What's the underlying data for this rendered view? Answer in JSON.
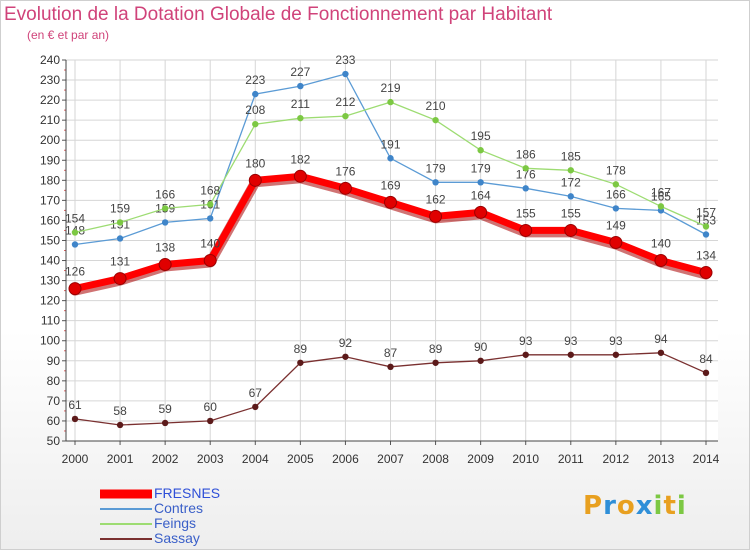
{
  "title": "Evolution de la Dotation Globale de Fonctionnement par Habitant",
  "subtitle": "(en € et par an)",
  "logo": {
    "text": "Proxiti",
    "letters": [
      "P",
      "r",
      "o",
      "x",
      "i",
      "t",
      "i"
    ]
  },
  "chart_data": {
    "type": "line",
    "title": "Evolution de la Dotation Globale de Fonctionnement par Habitant",
    "subtitle": "(en € et par an)",
    "xlabel": "",
    "ylabel": "",
    "x": [
      "2000",
      "2001",
      "2002",
      "2003",
      "2004",
      "2005",
      "2006",
      "2007",
      "2008",
      "2009",
      "2010",
      "2011",
      "2012",
      "2013",
      "2014"
    ],
    "ylim": [
      50,
      240
    ],
    "yticks": [
      50,
      60,
      70,
      80,
      90,
      100,
      110,
      120,
      130,
      140,
      150,
      160,
      170,
      180,
      190,
      200,
      210,
      220,
      230,
      240
    ],
    "grid": true,
    "legend": "bottom-left",
    "series": [
      {
        "name": "FRESNES",
        "color": "#ff0000",
        "marker": "#cc0000",
        "values": [
          126,
          131,
          138,
          140,
          180,
          182,
          176,
          169,
          162,
          164,
          155,
          155,
          149,
          140,
          134
        ]
      },
      {
        "name": "Contres",
        "color": "#5b9bd5",
        "marker": "#3f85c9",
        "values": [
          148,
          151,
          159,
          161,
          223,
          227,
          233,
          191,
          179,
          179,
          176,
          172,
          166,
          165,
          153
        ]
      },
      {
        "name": "Feings",
        "color": "#9ddc72",
        "marker": "#7cc843",
        "values": [
          154,
          159,
          166,
          168,
          208,
          211,
          212,
          219,
          210,
          195,
          186,
          185,
          178,
          167,
          157
        ]
      },
      {
        "name": "Sassay",
        "color": "#7a3030",
        "marker": "#5c1a1a",
        "values": [
          61,
          58,
          59,
          60,
          67,
          89,
          92,
          87,
          89,
          90,
          93,
          93,
          93,
          94,
          84
        ]
      }
    ]
  }
}
